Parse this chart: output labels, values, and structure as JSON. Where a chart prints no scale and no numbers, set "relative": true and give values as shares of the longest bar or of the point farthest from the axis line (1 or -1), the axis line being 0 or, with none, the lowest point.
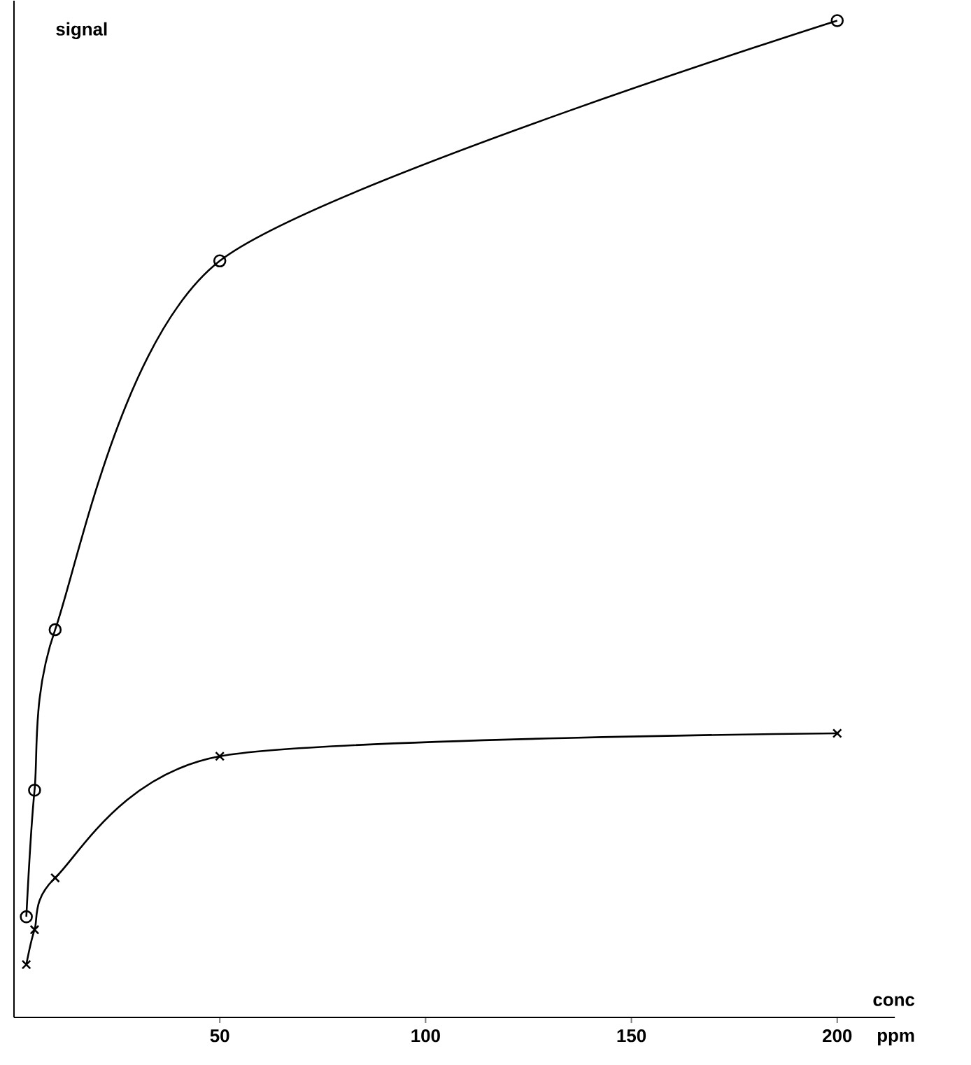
{
  "chart_data": {
    "type": "line",
    "relative": true,
    "xlabel": "conc",
    "ylabel": "signal",
    "annotations": [
      "ppm"
    ],
    "x": [
      3,
      5,
      10,
      50,
      200
    ],
    "xlim": [
      0,
      214
    ],
    "xticks": [
      50,
      100,
      150,
      200
    ],
    "grid": false,
    "tick_labels": "x",
    "series": [
      {
        "color": "#000000",
        "marker": "circle",
        "values": [
          0.101,
          0.228,
          0.389,
          0.759,
          1.0
        ]
      },
      {
        "color": "#000000",
        "marker": "cross",
        "values": [
          0.053,
          0.088,
          0.14,
          0.262,
          0.285
        ]
      }
    ]
  }
}
